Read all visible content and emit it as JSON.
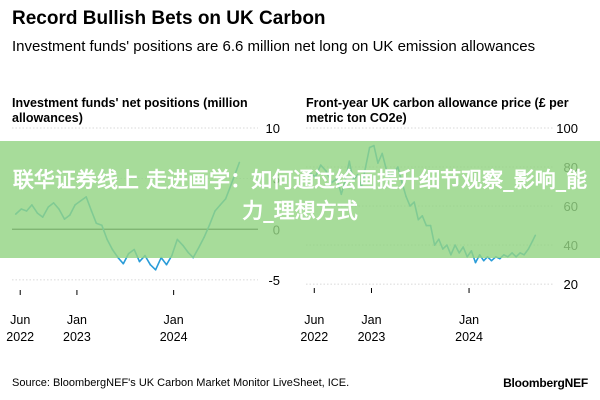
{
  "title": "Record Bullish Bets on UK Carbon",
  "subtitle": "Investment funds' positions are 6.6 million net long on UK emission allowances",
  "source": "Source: BloombergNEF's UK Carbon Market Monitor LiveSheet, ICE.",
  "brand": "BloombergNEF",
  "overlay_text": "联华证券线上 走进画学：如何通过绘画提升细节观察_影响_能力_理想方式",
  "colors": {
    "line": "#2a9cd8",
    "zero_line": "#111111",
    "grid": "#cccccc",
    "overlay": "#94d484"
  },
  "chart_data": [
    {
      "type": "line",
      "title": "Investment funds' net positions (million allowances)",
      "x_ticks": [
        {
          "value": "2022-06",
          "label": "Jun",
          "year": "2022"
        },
        {
          "value": "2023-01",
          "label": "Jan",
          "year": "2023"
        },
        {
          "value": "2024-01",
          "label": "Jan",
          "year": "2024"
        }
      ],
      "y_ticks": [
        10,
        5,
        0,
        -5
      ],
      "ylim": [
        -6,
        10
      ],
      "xlim": [
        "2022-05-01",
        "2024-09-15"
      ],
      "series": [
        {
          "x": [
            "2022-05-15",
            "2022-06-05",
            "2022-06-25",
            "2022-07-15",
            "2022-08-05",
            "2022-08-25",
            "2022-09-15",
            "2022-10-05",
            "2022-10-25",
            "2022-11-15",
            "2022-12-05",
            "2022-12-25",
            "2023-01-15",
            "2023-02-05",
            "2023-02-25",
            "2023-03-15",
            "2023-04-05",
            "2023-04-25",
            "2023-05-15",
            "2023-06-05",
            "2023-06-25",
            "2023-07-15",
            "2023-08-05",
            "2023-08-25",
            "2023-09-15",
            "2023-10-05",
            "2023-10-25",
            "2023-11-15",
            "2023-12-05",
            "2023-12-25",
            "2024-01-15",
            "2024-02-05",
            "2024-02-25",
            "2024-03-15",
            "2024-04-05",
            "2024-04-25",
            "2024-05-15",
            "2024-06-05",
            "2024-06-25",
            "2024-07-15",
            "2024-08-05",
            "2024-08-25",
            "2024-09-05"
          ],
          "y": [
            1.5,
            2.0,
            1.8,
            2.4,
            1.6,
            1.2,
            2.2,
            2.6,
            2.0,
            1.0,
            1.4,
            2.4,
            2.8,
            3.2,
            1.8,
            0.6,
            0.4,
            -1.0,
            -2.0,
            -2.8,
            -3.4,
            -2.4,
            -2.0,
            -3.2,
            -2.6,
            -3.5,
            -4.0,
            -2.8,
            -3.5,
            -2.6,
            -1.0,
            -1.6,
            -2.3,
            -2.8,
            -1.8,
            -0.8,
            0.4,
            1.8,
            2.4,
            3.0,
            4.4,
            5.8,
            6.6
          ]
        }
      ]
    },
    {
      "type": "line",
      "title": "Front-year UK carbon allowance price (£ per metric ton CO2e)",
      "x_ticks": [
        {
          "value": "2022-06",
          "label": "Jun",
          "year": "2022"
        },
        {
          "value": "2023-01",
          "label": "Jan",
          "year": "2023"
        },
        {
          "value": "2024-01",
          "label": "Jan",
          "year": "2024"
        }
      ],
      "y_ticks": [
        100,
        80,
        60,
        40,
        20
      ],
      "ylim": [
        18,
        100
      ],
      "xlim": [
        "2022-05-01",
        "2024-09-15"
      ],
      "series": [
        {
          "x": [
            "2022-05-15",
            "2022-06-05",
            "2022-06-25",
            "2022-07-15",
            "2022-08-05",
            "2022-08-25",
            "2022-09-10",
            "2022-09-25",
            "2022-10-10",
            "2022-10-25",
            "2022-11-10",
            "2022-11-25",
            "2022-12-10",
            "2022-12-25",
            "2023-01-10",
            "2023-01-25",
            "2023-02-10",
            "2023-02-25",
            "2023-03-10",
            "2023-03-25",
            "2023-04-10",
            "2023-04-25",
            "2023-05-10",
            "2023-05-25",
            "2023-06-10",
            "2023-06-25",
            "2023-07-10",
            "2023-07-25",
            "2023-08-10",
            "2023-08-25",
            "2023-09-10",
            "2023-09-25",
            "2023-10-10",
            "2023-10-25",
            "2023-11-10",
            "2023-11-25",
            "2023-12-10",
            "2023-12-25",
            "2024-01-10",
            "2024-01-25",
            "2024-02-10",
            "2024-02-25",
            "2024-03-10",
            "2024-03-25",
            "2024-04-10",
            "2024-04-25",
            "2024-05-10",
            "2024-05-25",
            "2024-06-10",
            "2024-06-25",
            "2024-07-10",
            "2024-07-25",
            "2024-08-10",
            "2024-08-25",
            "2024-09-05"
          ],
          "y": [
            77,
            75,
            81,
            78,
            72,
            74,
            66,
            73,
            83,
            73,
            76,
            70,
            80,
            90,
            91,
            82,
            87,
            79,
            75,
            77,
            80,
            72,
            65,
            60,
            62,
            53,
            55,
            50,
            50,
            40,
            43,
            38,
            40,
            35,
            40,
            36,
            39,
            34,
            37,
            31,
            35,
            32,
            34,
            32,
            34,
            33,
            35,
            34,
            36,
            34,
            36,
            35,
            38,
            42,
            45
          ]
        }
      ]
    }
  ]
}
